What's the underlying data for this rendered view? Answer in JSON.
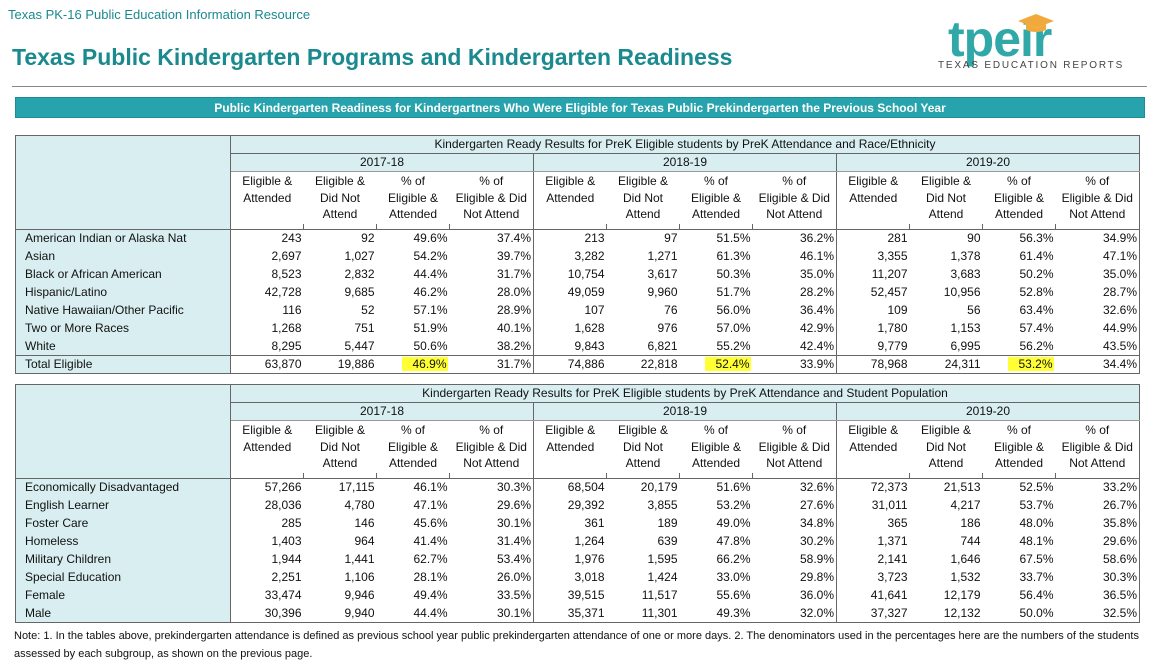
{
  "header": {
    "subtitle": "Texas PK-16 Public Education Information Resource",
    "title": "Texas Public Kindergarten Programs and Kindergarten Readiness"
  },
  "logo": {
    "word": "tpeir",
    "tagline": "TEXAS EDUCATION REPORTS",
    "color": "#31a8a8",
    "cap_color": "#f2a93b"
  },
  "banner": "Public Kindergarten Readiness for Kindergartners Who Were Eligible for Texas Public Prekindergarten the Previous School Year",
  "years": [
    "2017-18",
    "2018-19",
    "2019-20"
  ],
  "column_headers": [
    [
      "Eligible &",
      "Attended"
    ],
    [
      "Eligible &",
      "Did Not",
      "Attend"
    ],
    [
      "% of",
      "Eligible &",
      "Attended"
    ],
    [
      "% of",
      "Eligible & Did",
      "Not Attend"
    ]
  ],
  "tables": [
    {
      "title": "Kindergarten Ready Results for PreK Eligible students by PreK Attendance and Race/Ethnicity",
      "rows": [
        {
          "label": "American Indian or Alaska Nat",
          "values": [
            "243",
            "92",
            "49.6%",
            "37.4%",
            "213",
            "97",
            "51.5%",
            "36.2%",
            "281",
            "90",
            "56.3%",
            "34.9%"
          ]
        },
        {
          "label": "Asian",
          "values": [
            "2,697",
            "1,027",
            "54.2%",
            "39.7%",
            "3,282",
            "1,271",
            "61.3%",
            "46.1%",
            "3,355",
            "1,378",
            "61.4%",
            "47.1%"
          ]
        },
        {
          "label": "Black or African American",
          "values": [
            "8,523",
            "2,832",
            "44.4%",
            "31.7%",
            "10,754",
            "3,617",
            "50.3%",
            "35.0%",
            "11,207",
            "3,683",
            "50.2%",
            "35.0%"
          ]
        },
        {
          "label": "Hispanic/Latino",
          "values": [
            "42,728",
            "9,685",
            "46.2%",
            "28.0%",
            "49,059",
            "9,960",
            "51.7%",
            "28.2%",
            "52,457",
            "10,956",
            "52.8%",
            "28.7%"
          ]
        },
        {
          "label": "Native Hawaiian/Other Pacific",
          "values": [
            "116",
            "52",
            "57.1%",
            "28.9%",
            "107",
            "76",
            "56.0%",
            "36.4%",
            "109",
            "56",
            "63.4%",
            "32.6%"
          ]
        },
        {
          "label": "Two or More Races",
          "values": [
            "1,268",
            "751",
            "51.9%",
            "40.1%",
            "1,628",
            "976",
            "57.0%",
            "42.9%",
            "1,780",
            "1,153",
            "57.4%",
            "44.9%"
          ]
        },
        {
          "label": "White",
          "values": [
            "8,295",
            "5,447",
            "50.6%",
            "38.2%",
            "9,843",
            "6,821",
            "55.2%",
            "42.4%",
            "9,779",
            "6,995",
            "56.2%",
            "43.5%"
          ]
        },
        {
          "label": "Total Eligible",
          "values": [
            "63,870",
            "19,886",
            "46.9%",
            "31.7%",
            "74,886",
            "22,818",
            "52.4%",
            "33.9%",
            "78,968",
            "24,311",
            "53.2%",
            "34.4%"
          ],
          "highlight": [
            2,
            6,
            10
          ]
        }
      ]
    },
    {
      "title": "Kindergarten Ready Results for PreK Eligible students by PreK Attendance and Student Population",
      "rows": [
        {
          "label": "Economically Disadvantaged",
          "values": [
            "57,266",
            "17,115",
            "46.1%",
            "30.3%",
            "68,504",
            "20,179",
            "51.6%",
            "32.6%",
            "72,373",
            "21,513",
            "52.5%",
            "33.2%"
          ]
        },
        {
          "label": "English Learner",
          "values": [
            "28,036",
            "4,780",
            "47.1%",
            "29.6%",
            "29,392",
            "3,855",
            "53.2%",
            "27.6%",
            "31,011",
            "4,217",
            "53.7%",
            "26.7%"
          ]
        },
        {
          "label": "Foster Care",
          "values": [
            "285",
            "146",
            "45.6%",
            "30.1%",
            "361",
            "189",
            "49.0%",
            "34.8%",
            "365",
            "186",
            "48.0%",
            "35.8%"
          ]
        },
        {
          "label": "Homeless",
          "values": [
            "1,403",
            "964",
            "41.4%",
            "31.4%",
            "1,264",
            "639",
            "47.8%",
            "30.2%",
            "1,371",
            "744",
            "48.1%",
            "29.6%"
          ]
        },
        {
          "label": "Military Children",
          "values": [
            "1,944",
            "1,441",
            "62.7%",
            "53.4%",
            "1,976",
            "1,595",
            "66.2%",
            "58.9%",
            "2,141",
            "1,646",
            "67.5%",
            "58.6%"
          ]
        },
        {
          "label": "Special Education",
          "values": [
            "2,251",
            "1,106",
            "28.1%",
            "26.0%",
            "3,018",
            "1,424",
            "33.0%",
            "29.8%",
            "3,723",
            "1,532",
            "33.7%",
            "30.3%"
          ]
        },
        {
          "label": "Female",
          "values": [
            "33,474",
            "9,946",
            "49.4%",
            "33.5%",
            "39,515",
            "11,517",
            "55.6%",
            "36.0%",
            "41,641",
            "12,179",
            "56.4%",
            "36.5%"
          ]
        },
        {
          "label": "Male",
          "values": [
            "30,396",
            "9,940",
            "44.4%",
            "30.1%",
            "35,371",
            "11,301",
            "49.3%",
            "32.0%",
            "37,327",
            "12,132",
            "50.0%",
            "32.5%"
          ]
        }
      ]
    }
  ],
  "note": "Note: 1. In the tables above, prekindergarten attendance is defined as previous school year public prekindergarten attendance of one or more days.  2. The denominators used in the percentages here are the numbers of the students assessed by each subgroup, as shown on the previous page."
}
